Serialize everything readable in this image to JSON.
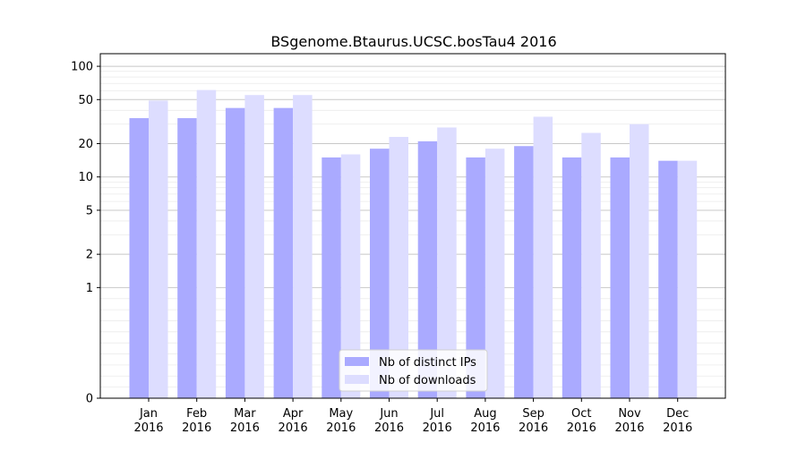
{
  "chart_data": {
    "type": "bar",
    "title": "BSgenome.Btaurus.UCSC.bosTau4 2016",
    "xlabel": "",
    "ylabel": "",
    "yscale": "symlog",
    "ylim": [
      0,
      130
    ],
    "grid": true,
    "legend_position": "bottom-center",
    "categories": [
      "Jan\n2016",
      "Feb\n2016",
      "Mar\n2016",
      "Apr\n2016",
      "May\n2016",
      "Jun\n2016",
      "Jul\n2016",
      "Aug\n2016",
      "Sep\n2016",
      "Oct\n2016",
      "Nov\n2016",
      "Dec\n2016"
    ],
    "series": [
      {
        "name": "Nb of distinct IPs",
        "color": "#aaaaff",
        "values": [
          34,
          34,
          42,
          42,
          15,
          18,
          21,
          15,
          19,
          15,
          15,
          14
        ]
      },
      {
        "name": "Nb of downloads",
        "color": "#ddddff",
        "values": [
          49,
          61,
          55,
          55,
          16,
          23,
          28,
          18,
          35,
          25,
          30,
          14
        ]
      }
    ],
    "yticks": [
      0,
      1,
      2,
      5,
      10,
      20,
      50,
      100
    ],
    "ytick_labels": [
      "0",
      "1",
      "2",
      "5",
      "10",
      "20",
      "50",
      "100"
    ]
  }
}
